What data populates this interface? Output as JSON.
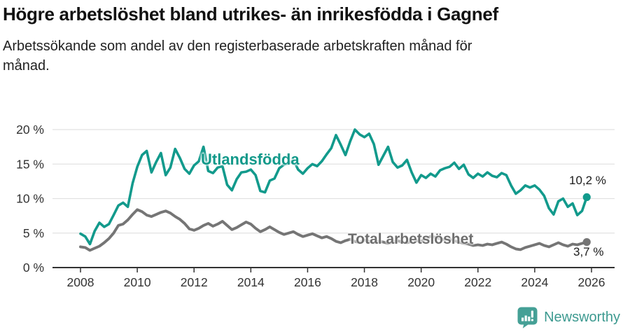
{
  "header": {
    "title": "Högre arbetslöshet bland utrikes- än inrikesfödda i Gagnef",
    "subtitle": "Arbetssökande som andel av den registerbaserade arbetskraften månad för månad."
  },
  "footer": {
    "brand": "Newsworthy",
    "brand_color": "#3d9a90",
    "icon": "bar-chart-speech-bubble-icon"
  },
  "colors": {
    "series_utlandsfodda": "#129a8c",
    "series_total": "#757575",
    "gridline": "#e2e2e2",
    "axis": "#333333",
    "tick_text": "#333333"
  },
  "chart_data": {
    "type": "line",
    "title": "",
    "xlabel": "",
    "ylabel": "",
    "grid": "horizontal",
    "legend_position": "inline-labels",
    "ylim": [
      0,
      20
    ],
    "y_tick_values": [
      0,
      5,
      10,
      15,
      20
    ],
    "y_tick_labels": [
      "0 %",
      "5 %",
      "10 %",
      "15 %",
      "20 %"
    ],
    "x_tick_values": [
      2008,
      2010,
      2012,
      2014,
      2016,
      2018,
      2020,
      2022,
      2024,
      2026
    ],
    "x_tick_labels": [
      "2008",
      "2010",
      "2012",
      "2014",
      "2016",
      "2018",
      "2020",
      "2022",
      "2024",
      "2026"
    ],
    "x_start": 2008.0,
    "x_step_years": 0.166667,
    "series": [
      {
        "name": "Utlandsfödda",
        "color": "#129a8c",
        "end_label": "10,2 %",
        "end_value": 10.2,
        "values": [
          4.9,
          4.5,
          3.4,
          5.3,
          6.5,
          5.9,
          6.3,
          7.6,
          9.0,
          9.4,
          8.8,
          12.2,
          14.6,
          16.3,
          16.9,
          13.8,
          15.3,
          16.6,
          13.4,
          14.5,
          17.2,
          15.9,
          14.3,
          13.6,
          14.8,
          15.4,
          17.5,
          14.0,
          13.7,
          14.5,
          14.7,
          12.0,
          11.2,
          12.8,
          13.8,
          13.9,
          14.2,
          13.4,
          11.1,
          10.9,
          12.6,
          12.9,
          14.4,
          14.9,
          15.1,
          15.6,
          14.2,
          13.6,
          14.4,
          15.0,
          14.7,
          15.4,
          16.4,
          17.3,
          19.2,
          17.8,
          16.3,
          18.3,
          20.0,
          19.3,
          18.9,
          19.4,
          17.9,
          14.9,
          16.2,
          17.5,
          15.3,
          14.5,
          14.8,
          15.6,
          13.8,
          12.3,
          13.4,
          13.0,
          13.6,
          13.2,
          14.1,
          14.4,
          14.6,
          15.2,
          14.3,
          14.9,
          13.5,
          13.0,
          13.6,
          13.2,
          13.8,
          13.3,
          13.1,
          13.7,
          13.4,
          11.9,
          10.7,
          11.2,
          11.9,
          11.6,
          11.9,
          11.3,
          10.4,
          8.6,
          7.7,
          9.6,
          10.0,
          8.8,
          9.3,
          7.6,
          8.2,
          10.2
        ]
      },
      {
        "name": "Total arbetslöshet",
        "color": "#757575",
        "end_label": "3,7 %",
        "end_value": 3.7,
        "values": [
          3.0,
          2.9,
          2.5,
          2.8,
          3.1,
          3.6,
          4.2,
          5.0,
          6.1,
          6.3,
          6.9,
          7.7,
          8.4,
          8.1,
          7.6,
          7.4,
          7.7,
          8.0,
          8.2,
          7.9,
          7.4,
          7.0,
          6.4,
          5.6,
          5.4,
          5.7,
          6.1,
          6.4,
          6.0,
          6.3,
          6.7,
          6.1,
          5.5,
          5.8,
          6.2,
          6.6,
          6.3,
          5.7,
          5.2,
          5.5,
          5.9,
          5.5,
          5.1,
          4.8,
          5.0,
          5.2,
          4.8,
          4.5,
          4.7,
          4.9,
          4.6,
          4.3,
          4.5,
          4.2,
          3.8,
          3.6,
          3.9,
          4.1,
          3.8,
          3.6,
          4.0,
          3.8,
          3.6,
          3.8,
          3.7,
          3.5,
          3.7,
          3.9,
          3.7,
          3.6,
          3.8,
          3.9,
          3.8,
          4.2,
          4.5,
          4.4,
          4.2,
          4.0,
          4.1,
          3.9,
          3.7,
          3.5,
          3.4,
          3.2,
          3.3,
          3.2,
          3.4,
          3.3,
          3.5,
          3.7,
          3.4,
          3.0,
          2.7,
          2.6,
          2.9,
          3.1,
          3.3,
          3.5,
          3.2,
          3.0,
          3.3,
          3.6,
          3.3,
          3.1,
          3.4,
          3.3,
          3.5,
          3.7
        ]
      }
    ]
  }
}
